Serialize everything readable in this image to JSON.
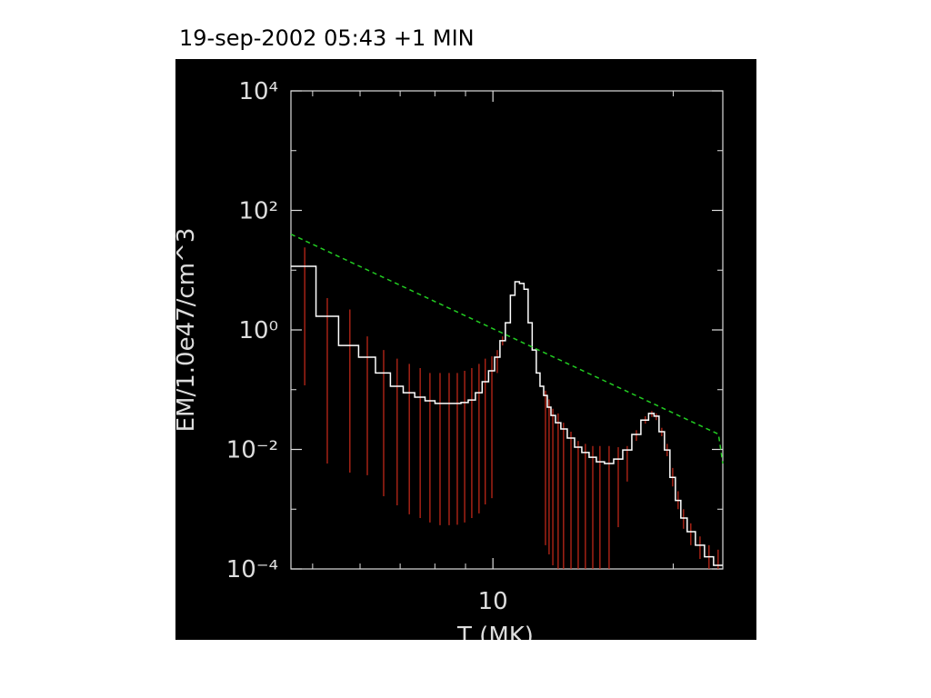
{
  "chart_data": {
    "type": "step",
    "title": "19-sep-2002 05:43 +1 MIN",
    "xlabel": "T (MK)",
    "ylabel": "EM/1.0e47/cm^3",
    "xlog": true,
    "ylog": true,
    "xlim": [
      4.6,
      24.2
    ],
    "ylim": [
      0.0001,
      10000
    ],
    "xticks": [
      10
    ],
    "xminorticks": [
      5,
      6,
      7,
      8,
      9,
      20
    ],
    "yticks": [
      {
        "value": 0.0001,
        "label": "10⁻⁴"
      },
      {
        "value": 0.01,
        "label": "10⁻²"
      },
      {
        "value": 1,
        "label": "10⁰"
      },
      {
        "value": 100,
        "label": "10²"
      },
      {
        "value": 10000,
        "label": "10⁴"
      }
    ],
    "yminorticks": [
      0.001,
      0.1,
      10,
      1000
    ],
    "color": "#ffffff",
    "error_color": "#cc2a1a",
    "x": [
      4.85,
      5.29,
      5.77,
      6.17,
      6.57,
      6.92,
      7.25,
      7.56,
      7.85,
      8.16,
      8.45,
      8.72,
      8.97,
      9.22,
      9.48,
      9.71,
      9.96,
      10.17,
      10.38,
      10.6,
      10.79,
      10.98,
      11.17,
      11.37,
      11.53,
      11.73,
      11.9,
      12.07,
      12.24,
      12.41,
      12.59,
      12.85,
      13.12,
      13.5,
      13.88,
      14.27,
      14.68,
      15.09,
      15.63,
      16.19,
      16.76,
      17.36,
      17.97,
      18.42,
      18.74,
      19.14,
      19.54,
      19.96,
      20.38,
      20.81,
      21.4,
      22.17,
      22.95,
      23.77
    ],
    "values": [
      11.6,
      1.69,
      0.55,
      0.35,
      0.19,
      0.114,
      0.089,
      0.075,
      0.065,
      0.059,
      0.059,
      0.059,
      0.061,
      0.067,
      0.089,
      0.136,
      0.207,
      0.35,
      0.66,
      1.32,
      3.8,
      6.4,
      6.0,
      4.8,
      1.32,
      0.46,
      0.19,
      0.114,
      0.08,
      0.051,
      0.037,
      0.028,
      0.022,
      0.0155,
      0.0109,
      0.0089,
      0.0074,
      0.0062,
      0.0058,
      0.0069,
      0.0098,
      0.0178,
      0.031,
      0.04,
      0.036,
      0.0198,
      0.0098,
      0.0034,
      0.0014,
      0.00071,
      0.00042,
      0.00025,
      0.00016,
      0.000115
    ],
    "upper": [
      24,
      3.4,
      2.2,
      0.78,
      0.46,
      0.33,
      0.27,
      0.23,
      0.19,
      0.19,
      0.19,
      0.19,
      0.207,
      0.23,
      0.27,
      0.33,
      0.36,
      0.46,
      0.78,
      null,
      null,
      null,
      null,
      null,
      null,
      null,
      null,
      null,
      0.096,
      0.069,
      0.048,
      0.04,
      0.028,
      0.0198,
      0.0139,
      0.0124,
      0.0114,
      0.0114,
      0.0114,
      0.0109,
      0.0114,
      0.021,
      0.036,
      0.044,
      0.04,
      0.023,
      0.0124,
      0.0049,
      0.002,
      0.001,
      0.00058,
      0.00035,
      0.00025,
      0.00021
    ],
    "lower": [
      0.118,
      0.0058,
      0.0041,
      0.0037,
      0.00165,
      0.00116,
      0.00082,
      0.00071,
      0.0006,
      0.00054,
      0.00054,
      0.00055,
      0.0006,
      0.00071,
      0.00085,
      0.0012,
      0.00153,
      0.19,
      0.55,
      null,
      null,
      null,
      null,
      null,
      null,
      null,
      null,
      null,
      0.00025,
      0.000175,
      0.000115,
      0.0001,
      0.0001,
      0.0001,
      0.0001,
      0.0001,
      0.0001,
      0.0001,
      0.0001,
      0.0005,
      0.0029,
      0.0139,
      0.027,
      0.035,
      0.031,
      0.0166,
      0.0077,
      0.0024,
      0.001,
      0.00047,
      0.00025,
      0.000147,
      0.0001,
      0.0001
    ],
    "fit": {
      "x": [
        4.6,
        23.8,
        24.2
      ],
      "values": [
        40,
        0.018,
        0.0058
      ],
      "color": "#22cc22",
      "dashed": true
    }
  }
}
